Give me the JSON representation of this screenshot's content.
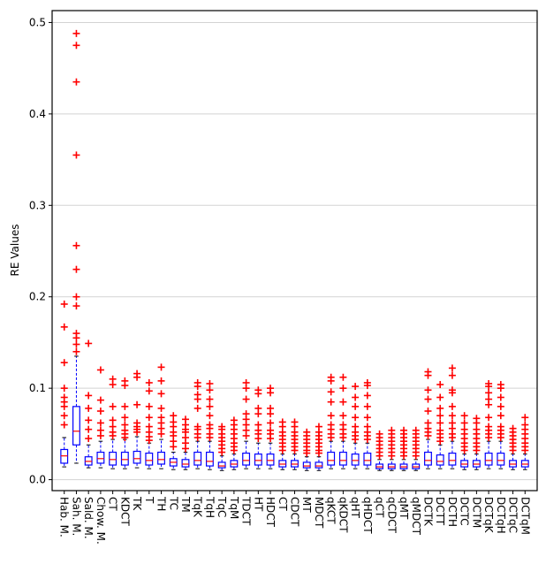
{
  "chart_data": {
    "type": "box",
    "title": "",
    "xlabel": "",
    "ylabel": "RE Values",
    "ylim": [
      -0.012,
      0.513
    ],
    "yticks": [
      0.0,
      0.1,
      0.2,
      0.3,
      0.4,
      0.5
    ],
    "ytick_labels": [
      "0.0",
      "0.1",
      "0.2",
      "0.3",
      "0.4",
      "0.5"
    ],
    "grid": "horizontal",
    "colors": {
      "box": "#0000ff",
      "whisker": "#0000ff",
      "median": "#ff0000",
      "outlier": "#ff0000",
      "grid": "#d3d3d3"
    },
    "categories": [
      "Hab. M.",
      "Sah. M.",
      "Sald. M.",
      "Chow. M.",
      "CT",
      "KDCT",
      "TK",
      "T",
      "TH",
      "TC",
      "TM",
      "TqK",
      "TqH",
      "TqC",
      "TqM",
      "TDCT",
      "HT",
      "HDCT",
      "CT",
      "CDCT",
      "MT",
      "MDCT",
      "qKCT",
      "qKDCT",
      "qHT",
      "qHDCT",
      "qCT",
      "qCDCT",
      "qMT",
      "qMDCT",
      "DCTK",
      "DCTT",
      "DCTH",
      "DCTC",
      "DCTM",
      "DCTqK",
      "DCTqH",
      "DCTqC",
      "DCTqM"
    ],
    "boxes": [
      {
        "q1": 0.018,
        "median": 0.026,
        "q3": 0.033,
        "wlo": 0.014,
        "whi": 0.046,
        "outliers": [
          0.06,
          0.07,
          0.08,
          0.085,
          0.09,
          0.1,
          0.128,
          0.167,
          0.192
        ]
      },
      {
        "q1": 0.038,
        "median": 0.053,
        "q3": 0.08,
        "wlo": 0.018,
        "whi": 0.135,
        "outliers": [
          0.14,
          0.148,
          0.155,
          0.16,
          0.19,
          0.2,
          0.23,
          0.256,
          0.355,
          0.435,
          0.475,
          0.488
        ]
      },
      {
        "q1": 0.016,
        "median": 0.02,
        "q3": 0.025,
        "wlo": 0.013,
        "whi": 0.038,
        "outliers": [
          0.045,
          0.055,
          0.065,
          0.078,
          0.092,
          0.149
        ]
      },
      {
        "q1": 0.018,
        "median": 0.023,
        "q3": 0.03,
        "wlo": 0.013,
        "whi": 0.042,
        "outliers": [
          0.048,
          0.054,
          0.062,
          0.075,
          0.087,
          0.12
        ]
      },
      {
        "q1": 0.016,
        "median": 0.022,
        "q3": 0.03,
        "wlo": 0.012,
        "whi": 0.044,
        "outliers": [
          0.048,
          0.052,
          0.058,
          0.065,
          0.08,
          0.104,
          0.11
        ]
      },
      {
        "q1": 0.016,
        "median": 0.022,
        "q3": 0.03,
        "wlo": 0.012,
        "whi": 0.044,
        "outliers": [
          0.046,
          0.05,
          0.054,
          0.06,
          0.068,
          0.08,
          0.103,
          0.108
        ]
      },
      {
        "q1": 0.018,
        "median": 0.023,
        "q3": 0.031,
        "wlo": 0.013,
        "whi": 0.047,
        "outliers": [
          0.052,
          0.055,
          0.058,
          0.062,
          0.082,
          0.112,
          0.116
        ]
      },
      {
        "q1": 0.016,
        "median": 0.021,
        "q3": 0.029,
        "wlo": 0.012,
        "whi": 0.04,
        "outliers": [
          0.043,
          0.047,
          0.052,
          0.058,
          0.068,
          0.08,
          0.097,
          0.106
        ]
      },
      {
        "q1": 0.017,
        "median": 0.022,
        "q3": 0.03,
        "wlo": 0.012,
        "whi": 0.044,
        "outliers": [
          0.05,
          0.056,
          0.062,
          0.068,
          0.078,
          0.094,
          0.108,
          0.123
        ]
      },
      {
        "q1": 0.015,
        "median": 0.019,
        "q3": 0.023,
        "wlo": 0.011,
        "whi": 0.03,
        "outliers": [
          0.036,
          0.042,
          0.048,
          0.052,
          0.058,
          0.063,
          0.07
        ]
      },
      {
        "q1": 0.014,
        "median": 0.017,
        "q3": 0.022,
        "wlo": 0.011,
        "whi": 0.03,
        "outliers": [
          0.034,
          0.04,
          0.046,
          0.052,
          0.055,
          0.06,
          0.066
        ]
      },
      {
        "q1": 0.016,
        "median": 0.021,
        "q3": 0.03,
        "wlo": 0.012,
        "whi": 0.042,
        "outliers": [
          0.046,
          0.05,
          0.055,
          0.058,
          0.078,
          0.088,
          0.093,
          0.102,
          0.106
        ]
      },
      {
        "q1": 0.015,
        "median": 0.02,
        "q3": 0.03,
        "wlo": 0.011,
        "whi": 0.042,
        "outliers": [
          0.046,
          0.05,
          0.056,
          0.06,
          0.07,
          0.08,
          0.088,
          0.098,
          0.105
        ]
      },
      {
        "q1": 0.013,
        "median": 0.015,
        "q3": 0.019,
        "wlo": 0.01,
        "whi": 0.026,
        "outliers": [
          0.03,
          0.034,
          0.038,
          0.042,
          0.046,
          0.05,
          0.055,
          0.058
        ]
      },
      {
        "q1": 0.014,
        "median": 0.017,
        "q3": 0.021,
        "wlo": 0.011,
        "whi": 0.028,
        "outliers": [
          0.032,
          0.036,
          0.04,
          0.045,
          0.05,
          0.055,
          0.06,
          0.065
        ]
      },
      {
        "q1": 0.016,
        "median": 0.021,
        "q3": 0.029,
        "wlo": 0.012,
        "whi": 0.042,
        "outliers": [
          0.048,
          0.054,
          0.06,
          0.066,
          0.072,
          0.088,
          0.1,
          0.106
        ]
      },
      {
        "q1": 0.016,
        "median": 0.021,
        "q3": 0.028,
        "wlo": 0.012,
        "whi": 0.04,
        "outliers": [
          0.045,
          0.05,
          0.054,
          0.06,
          0.072,
          0.078,
          0.094,
          0.098
        ]
      },
      {
        "q1": 0.016,
        "median": 0.021,
        "q3": 0.028,
        "wlo": 0.012,
        "whi": 0.04,
        "outliers": [
          0.045,
          0.05,
          0.054,
          0.062,
          0.072,
          0.078,
          0.095,
          0.1
        ]
      },
      {
        "q1": 0.014,
        "median": 0.017,
        "q3": 0.021,
        "wlo": 0.011,
        "whi": 0.028,
        "outliers": [
          0.032,
          0.036,
          0.04,
          0.044,
          0.048,
          0.052,
          0.058,
          0.063
        ]
      },
      {
        "q1": 0.014,
        "median": 0.017,
        "q3": 0.021,
        "wlo": 0.011,
        "whi": 0.028,
        "outliers": [
          0.032,
          0.036,
          0.04,
          0.044,
          0.048,
          0.052,
          0.058,
          0.063
        ]
      },
      {
        "q1": 0.013,
        "median": 0.015,
        "q3": 0.019,
        "wlo": 0.01,
        "whi": 0.025,
        "outliers": [
          0.029,
          0.032,
          0.036,
          0.04,
          0.044,
          0.048,
          0.052
        ]
      },
      {
        "q1": 0.013,
        "median": 0.015,
        "q3": 0.019,
        "wlo": 0.01,
        "whi": 0.025,
        "outliers": [
          0.029,
          0.032,
          0.036,
          0.04,
          0.044,
          0.048,
          0.052,
          0.058
        ]
      },
      {
        "q1": 0.016,
        "median": 0.021,
        "q3": 0.03,
        "wlo": 0.012,
        "whi": 0.042,
        "outliers": [
          0.046,
          0.05,
          0.055,
          0.06,
          0.07,
          0.085,
          0.096,
          0.108,
          0.112
        ]
      },
      {
        "q1": 0.016,
        "median": 0.021,
        "q3": 0.03,
        "wlo": 0.012,
        "whi": 0.042,
        "outliers": [
          0.046,
          0.05,
          0.055,
          0.06,
          0.07,
          0.085,
          0.1,
          0.112
        ]
      },
      {
        "q1": 0.016,
        "median": 0.021,
        "q3": 0.028,
        "wlo": 0.012,
        "whi": 0.04,
        "outliers": [
          0.044,
          0.048,
          0.052,
          0.058,
          0.068,
          0.08,
          0.09,
          0.102
        ]
      },
      {
        "q1": 0.016,
        "median": 0.021,
        "q3": 0.029,
        "wlo": 0.012,
        "whi": 0.04,
        "outliers": [
          0.044,
          0.048,
          0.052,
          0.058,
          0.068,
          0.08,
          0.092,
          0.103,
          0.106
        ]
      },
      {
        "q1": 0.012,
        "median": 0.014,
        "q3": 0.017,
        "wlo": 0.01,
        "whi": 0.022,
        "outliers": [
          0.026,
          0.03,
          0.034,
          0.038,
          0.042,
          0.046,
          0.05
        ]
      },
      {
        "q1": 0.012,
        "median": 0.014,
        "q3": 0.017,
        "wlo": 0.01,
        "whi": 0.022,
        "outliers": [
          0.026,
          0.03,
          0.034,
          0.038,
          0.042,
          0.046,
          0.05,
          0.054
        ]
      },
      {
        "q1": 0.012,
        "median": 0.014,
        "q3": 0.017,
        "wlo": 0.01,
        "whi": 0.022,
        "outliers": [
          0.026,
          0.03,
          0.034,
          0.038,
          0.042,
          0.046,
          0.05,
          0.054
        ]
      },
      {
        "q1": 0.012,
        "median": 0.014,
        "q3": 0.017,
        "wlo": 0.01,
        "whi": 0.022,
        "outliers": [
          0.026,
          0.03,
          0.034,
          0.038,
          0.042,
          0.046,
          0.05,
          0.054
        ]
      },
      {
        "q1": 0.016,
        "median": 0.021,
        "q3": 0.03,
        "wlo": 0.012,
        "whi": 0.044,
        "outliers": [
          0.048,
          0.052,
          0.056,
          0.062,
          0.075,
          0.088,
          0.098,
          0.114,
          0.118
        ]
      },
      {
        "q1": 0.016,
        "median": 0.02,
        "q3": 0.027,
        "wlo": 0.012,
        "whi": 0.038,
        "outliers": [
          0.042,
          0.046,
          0.05,
          0.054,
          0.062,
          0.07,
          0.078,
          0.09,
          0.104
        ]
      },
      {
        "q1": 0.016,
        "median": 0.021,
        "q3": 0.029,
        "wlo": 0.012,
        "whi": 0.042,
        "outliers": [
          0.046,
          0.05,
          0.056,
          0.062,
          0.07,
          0.08,
          0.095,
          0.098,
          0.114,
          0.122
        ]
      },
      {
        "q1": 0.014,
        "median": 0.017,
        "q3": 0.021,
        "wlo": 0.011,
        "whi": 0.028,
        "outliers": [
          0.032,
          0.036,
          0.04,
          0.045,
          0.05,
          0.055,
          0.062,
          0.07
        ]
      },
      {
        "q1": 0.014,
        "median": 0.017,
        "q3": 0.021,
        "wlo": 0.011,
        "whi": 0.028,
        "outliers": [
          0.032,
          0.036,
          0.04,
          0.045,
          0.05,
          0.055,
          0.062,
          0.067
        ]
      },
      {
        "q1": 0.016,
        "median": 0.021,
        "q3": 0.029,
        "wlo": 0.012,
        "whi": 0.042,
        "outliers": [
          0.046,
          0.05,
          0.054,
          0.058,
          0.068,
          0.082,
          0.088,
          0.095,
          0.102,
          0.105
        ]
      },
      {
        "q1": 0.016,
        "median": 0.021,
        "q3": 0.029,
        "wlo": 0.012,
        "whi": 0.042,
        "outliers": [
          0.046,
          0.05,
          0.054,
          0.058,
          0.07,
          0.08,
          0.09,
          0.1,
          0.104
        ]
      },
      {
        "q1": 0.014,
        "median": 0.017,
        "q3": 0.021,
        "wlo": 0.011,
        "whi": 0.028,
        "outliers": [
          0.032,
          0.036,
          0.04,
          0.044,
          0.048,
          0.052,
          0.056
        ]
      },
      {
        "q1": 0.014,
        "median": 0.017,
        "q3": 0.021,
        "wlo": 0.011,
        "whi": 0.028,
        "outliers": [
          0.032,
          0.036,
          0.04,
          0.045,
          0.05,
          0.055,
          0.06,
          0.068
        ]
      }
    ]
  }
}
